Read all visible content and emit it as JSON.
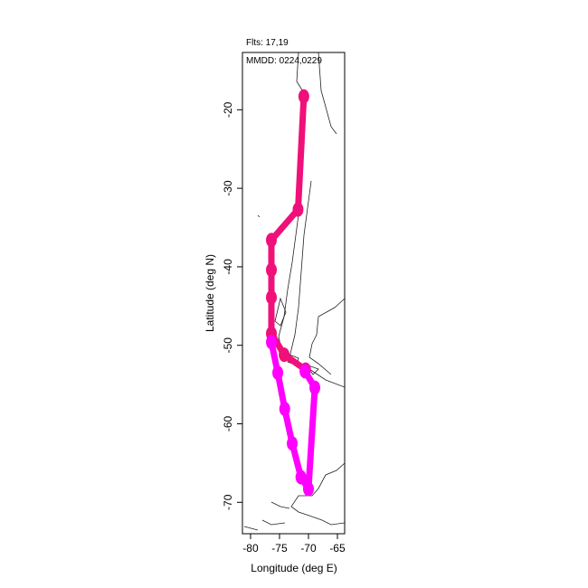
{
  "chart_data": {
    "type": "line",
    "annotations": [
      "Flts: 17,19",
      "MMDD: 0224,0229"
    ],
    "x_label": "Longitude (deg E)",
    "y_label": "Latitude (deg N)",
    "series": [
      {
        "color": "#f0107a",
        "x": [
          -70.8,
          -71.8,
          -76.4,
          -76.4,
          -76.4,
          -76.4,
          -74.2,
          -70.5
        ],
        "values": [
          -18.3,
          -32.7,
          -36.6,
          -40.4,
          -43.9,
          -48.5,
          -51.2,
          -53.1
        ]
      },
      {
        "color": "#ff00ff",
        "x": [
          -76.4,
          -75.3,
          -74.1,
          -72.8,
          -71.3,
          -70.0,
          -68.9,
          -70.6
        ],
        "values": [
          -49.6,
          -53.5,
          -58.1,
          -62.5,
          -66.8,
          -68.3,
          -55.4,
          -53.3
        ]
      }
    ],
    "xlim": [
      -81.4,
      -63.75
    ],
    "xticks": [
      -80,
      -75,
      -70,
      -65
    ],
    "ylim": [
      -74,
      -12.7
    ],
    "yticks": [
      -20,
      -30,
      -40,
      -50,
      -60,
      -70
    ]
  }
}
